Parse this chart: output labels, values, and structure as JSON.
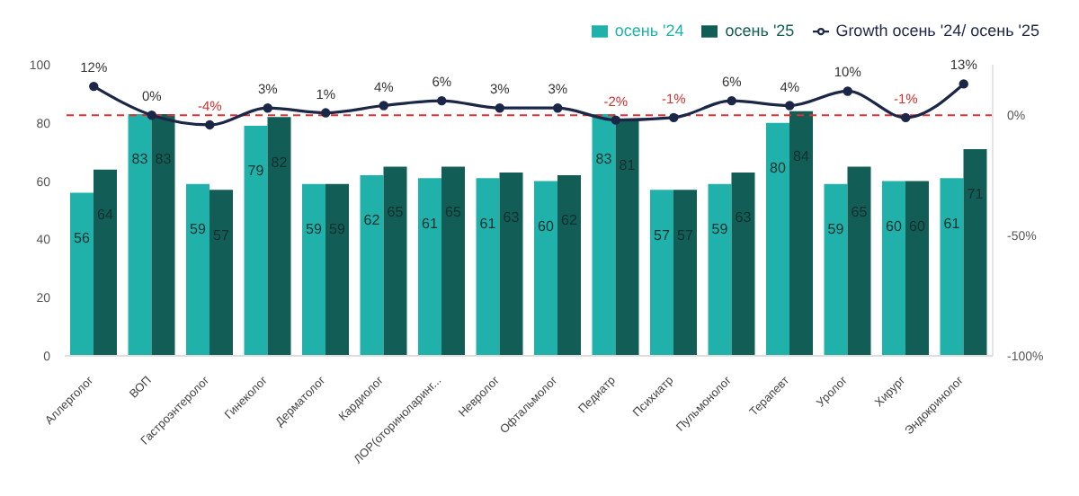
{
  "chart_data": {
    "type": "bar",
    "categories": [
      "Аллерголог",
      "ВОП",
      "Гастроэнтеролог",
      "Гинеколог",
      "Дерматолог",
      "Кардиолог",
      "ЛОР(оториноларинг...",
      "Невролог",
      "Офтальмолог",
      "Педиатр",
      "Психиатр",
      "Пульмонолог",
      "Терапевт",
      "Уролог",
      "Хирург",
      "Эндокринолог"
    ],
    "series": [
      {
        "name": "осень '24",
        "color": "#20b2aa",
        "values": [
          56,
          83,
          59,
          79,
          59,
          62,
          61,
          61,
          60,
          83,
          57,
          59,
          80,
          59,
          60,
          61
        ]
      },
      {
        "name": "осень '25",
        "color": "#125e56",
        "values": [
          64,
          83,
          57,
          82,
          59,
          65,
          65,
          63,
          62,
          81,
          57,
          63,
          84,
          65,
          60,
          71
        ]
      },
      {
        "name": "Growth осень '24/ осень '25",
        "type": "line",
        "axis": "y2",
        "color": "#1c2747",
        "marker": "circle",
        "values": [
          12,
          0,
          -4,
          3,
          1,
          4,
          6,
          3,
          3,
          -2,
          -1,
          6,
          4,
          10,
          -1,
          13
        ],
        "value_labels": [
          "12%",
          "0%",
          "-4%",
          "3%",
          "1%",
          "4%",
          "6%",
          "3%",
          "3%",
          "-2%",
          "-1%",
          "6%",
          "4%",
          "10%",
          "-1%",
          "13%"
        ]
      }
    ],
    "data_labels": true,
    "ylim": [
      0,
      100
    ],
    "yticks": [
      0,
      20,
      40,
      60,
      80,
      100
    ],
    "y2lim": [
      -100,
      21
    ],
    "y2ticks": [
      {
        "value": 0,
        "label": "0%"
      },
      {
        "value": -50,
        "label": "-50%"
      },
      {
        "value": -100,
        "label": "-100%"
      }
    ],
    "ref_lines": [
      {
        "axis": "y2",
        "value": 0,
        "color": "#e03030",
        "line_style": "dashed"
      }
    ],
    "grid": false,
    "legend": "top right"
  }
}
